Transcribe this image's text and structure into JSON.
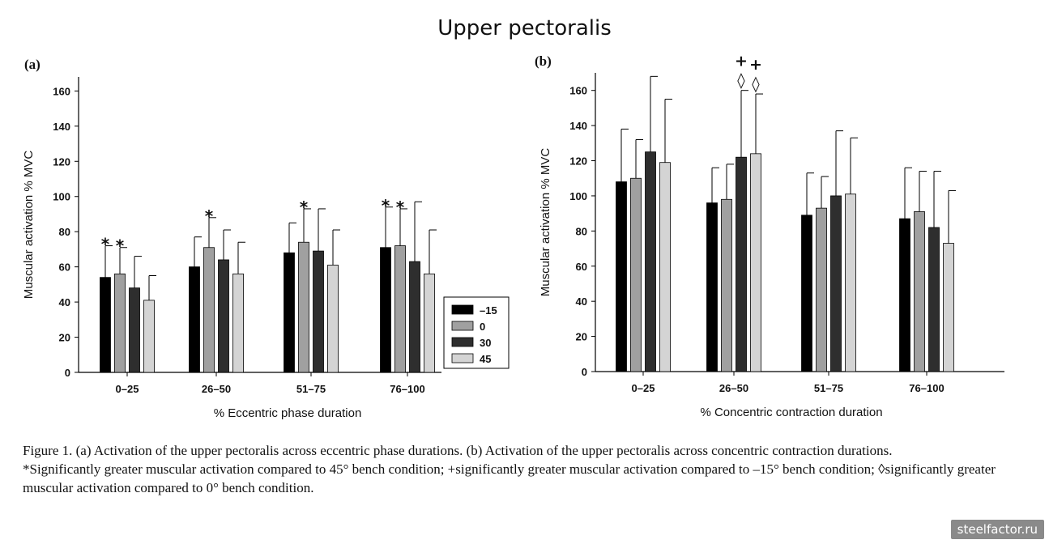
{
  "title": "Upper pectoralis",
  "panels": [
    {
      "label": "(a)",
      "chart_data": {
        "type": "bar",
        "categories": [
          "0–25",
          "26–50",
          "51–75",
          "76–100"
        ],
        "series": [
          {
            "name": "–15",
            "color": "#000000",
            "values": [
              54,
              60,
              68,
              71
            ],
            "errors": [
              72,
              77,
              85,
              94
            ]
          },
          {
            "name": "0",
            "color": "#a0a0a0",
            "values": [
              56,
              71,
              74,
              72
            ],
            "errors": [
              71,
              88,
              93,
              93
            ]
          },
          {
            "name": "30",
            "color": "#2e2e2e",
            "values": [
              48,
              64,
              69,
              63
            ],
            "errors": [
              66,
              81,
              93,
              97
            ]
          },
          {
            "name": "45",
            "color": "#d4d4d4",
            "values": [
              41,
              56,
              61,
              56
            ],
            "errors": [
              55,
              74,
              81,
              81
            ]
          }
        ],
        "annotations": [
          {
            "category": 0,
            "series": 0,
            "symbol": "*"
          },
          {
            "category": 0,
            "series": 1,
            "symbol": "*"
          },
          {
            "category": 1,
            "series": 1,
            "symbol": "*"
          },
          {
            "category": 2,
            "series": 1,
            "symbol": "*"
          },
          {
            "category": 3,
            "series": 0,
            "symbol": "*"
          },
          {
            "category": 3,
            "series": 1,
            "symbol": "*"
          }
        ],
        "ylabel": "Muscular activation % MVC",
        "xlabel": "% Eccentric phase duration",
        "yticks": [
          0,
          20,
          40,
          60,
          80,
          100,
          120,
          140,
          160
        ],
        "ylim": [
          0,
          168
        ],
        "legend": "right, lower",
        "legend_entries": [
          "–15",
          "0",
          "30",
          "45"
        ]
      }
    },
    {
      "label": "(b)",
      "chart_data": {
        "type": "bar",
        "categories": [
          "0–25",
          "26–50",
          "51–75",
          "76–100"
        ],
        "series": [
          {
            "name": "–15",
            "color": "#000000",
            "values": [
              108,
              96,
              89,
              87
            ],
            "errors": [
              138,
              116,
              113,
              116
            ]
          },
          {
            "name": "0",
            "color": "#a0a0a0",
            "values": [
              110,
              98,
              93,
              91
            ],
            "errors": [
              132,
              118,
              111,
              114
            ]
          },
          {
            "name": "30",
            "color": "#2e2e2e",
            "values": [
              125,
              122,
              100,
              82
            ],
            "errors": [
              168,
              160,
              137,
              114
            ]
          },
          {
            "name": "45",
            "color": "#d4d4d4",
            "values": [
              119,
              124,
              101,
              73
            ],
            "errors": [
              155,
              158,
              133,
              103
            ]
          }
        ],
        "annotations": [
          {
            "category": 1,
            "series": 2,
            "symbol": "◊"
          },
          {
            "category": 1,
            "series": 2,
            "symbol": "+"
          },
          {
            "category": 1,
            "series": 3,
            "symbol": "◊"
          },
          {
            "category": 1,
            "series": 3,
            "symbol": "+"
          }
        ],
        "ylabel": "Muscular activation % MVC",
        "xlabel": "% Concentric contraction duration",
        "yticks": [
          0,
          20,
          40,
          60,
          80,
          100,
          120,
          140,
          160
        ],
        "ylim": [
          0,
          170
        ]
      }
    }
  ],
  "caption": {
    "line1": "Figure 1.  (a) Activation of the upper pectoralis across eccentric phase durations. (b) Activation of the upper pectoralis across concentric contraction durations.",
    "line2": "*Significantly greater muscular activation compared to 45° bench condition; +significantly greater muscular activation compared to –15° bench condition; ◊significantly greater muscular activation compared to 0° bench condition."
  },
  "watermark": "steelfactor.ru"
}
